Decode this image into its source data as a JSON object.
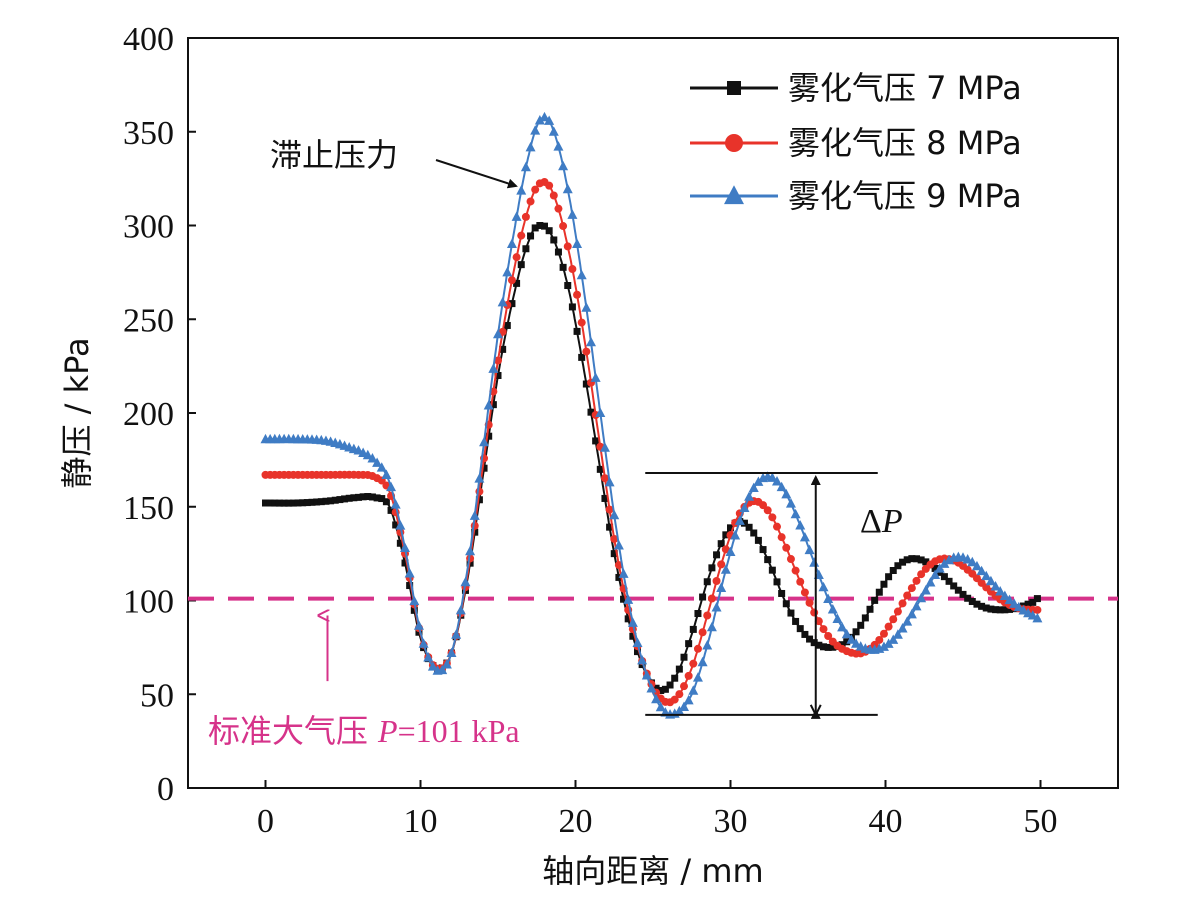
{
  "chart_data": {
    "type": "line",
    "xlabel": "轴向距离 / mm",
    "ylabel": "静压 / kPa",
    "xlim": [
      -5,
      55
    ],
    "ylim": [
      0,
      400
    ],
    "xticks": [
      0,
      10,
      20,
      30,
      40,
      50
    ],
    "yticks": [
      0,
      50,
      100,
      150,
      200,
      250,
      300,
      350,
      400
    ],
    "grid": false,
    "legend_position": "top-right",
    "series": [
      {
        "name": "雾化气压 7 MPa",
        "color": "#111111",
        "marker": "square",
        "points": [
          [
            0,
            152
          ],
          [
            2,
            152
          ],
          [
            4,
            153
          ],
          [
            6,
            155
          ],
          [
            7,
            155
          ],
          [
            8,
            150
          ],
          [
            9,
            120
          ],
          [
            10,
            80
          ],
          [
            11,
            64
          ],
          [
            12,
            72
          ],
          [
            13,
            110
          ],
          [
            14,
            165
          ],
          [
            15,
            220
          ],
          [
            16,
            262
          ],
          [
            17,
            292
          ],
          [
            17.7,
            300
          ],
          [
            18.5,
            294
          ],
          [
            19.5,
            268
          ],
          [
            20.5,
            225
          ],
          [
            21.5,
            175
          ],
          [
            22.5,
            125
          ],
          [
            23.5,
            87
          ],
          [
            24.5,
            62
          ],
          [
            25.5,
            52
          ],
          [
            26.5,
            60
          ],
          [
            27.5,
            82
          ],
          [
            28.5,
            110
          ],
          [
            29.5,
            132
          ],
          [
            30.5,
            142
          ],
          [
            31.5,
            136
          ],
          [
            32.5,
            120
          ],
          [
            33.5,
            100
          ],
          [
            34.5,
            85
          ],
          [
            35.5,
            77
          ],
          [
            36.5,
            75
          ],
          [
            37.5,
            78
          ],
          [
            38.5,
            88
          ],
          [
            39.5,
            103
          ],
          [
            40.5,
            116
          ],
          [
            41.5,
            122
          ],
          [
            42.5,
            121
          ],
          [
            43.5,
            115
          ],
          [
            44.5,
            107
          ],
          [
            45.5,
            100
          ],
          [
            46.5,
            96
          ],
          [
            47.5,
            95
          ],
          [
            48.5,
            96
          ],
          [
            49.5,
            99
          ],
          [
            50,
            102
          ]
        ]
      },
      {
        "name": "雾化气压 8 MPa",
        "color": "#e8332a",
        "marker": "circle",
        "points": [
          [
            0,
            167
          ],
          [
            2,
            167
          ],
          [
            4,
            167
          ],
          [
            6,
            167
          ],
          [
            7,
            166
          ],
          [
            8,
            158
          ],
          [
            9,
            125
          ],
          [
            10,
            82
          ],
          [
            11,
            64
          ],
          [
            12,
            72
          ],
          [
            13,
            112
          ],
          [
            14,
            170
          ],
          [
            15,
            228
          ],
          [
            16,
            275
          ],
          [
            17,
            310
          ],
          [
            17.8,
            323
          ],
          [
            18.6,
            316
          ],
          [
            19.6,
            285
          ],
          [
            20.6,
            238
          ],
          [
            21.6,
            182
          ],
          [
            22.6,
            128
          ],
          [
            23.6,
            88
          ],
          [
            24.6,
            61
          ],
          [
            25.6,
            47
          ],
          [
            26.5,
            48
          ],
          [
            27.5,
            64
          ],
          [
            28.5,
            92
          ],
          [
            29.5,
            122
          ],
          [
            30.5,
            145
          ],
          [
            31.5,
            153
          ],
          [
            32.5,
            147
          ],
          [
            33.5,
            130
          ],
          [
            34.5,
            110
          ],
          [
            35.5,
            92
          ],
          [
            36.5,
            79
          ],
          [
            37.5,
            73
          ],
          [
            38.5,
            72
          ],
          [
            39.5,
            78
          ],
          [
            40.5,
            90
          ],
          [
            41.5,
            104
          ],
          [
            42.5,
            116
          ],
          [
            43.5,
            122
          ],
          [
            44.5,
            121
          ],
          [
            45.5,
            115
          ],
          [
            46.5,
            107
          ],
          [
            47.5,
            100
          ],
          [
            48.5,
            96
          ],
          [
            49.5,
            95
          ],
          [
            50,
            95
          ]
        ]
      },
      {
        "name": "雾化气压 9 MPa",
        "color": "#3f7cc4",
        "marker": "triangle",
        "points": [
          [
            0,
            186
          ],
          [
            2,
            186
          ],
          [
            4,
            185
          ],
          [
            6,
            180
          ],
          [
            7,
            175
          ],
          [
            8,
            163
          ],
          [
            9,
            128
          ],
          [
            10,
            83
          ],
          [
            11,
            63
          ],
          [
            12,
            72
          ],
          [
            13,
            115
          ],
          [
            14,
            178
          ],
          [
            15,
            242
          ],
          [
            16,
            295
          ],
          [
            17,
            338
          ],
          [
            17.8,
            357
          ],
          [
            18.6,
            350
          ],
          [
            19.6,
            315
          ],
          [
            20.6,
            262
          ],
          [
            21.6,
            200
          ],
          [
            22.6,
            140
          ],
          [
            23.6,
            92
          ],
          [
            24.6,
            60
          ],
          [
            25.6,
            42
          ],
          [
            26.5,
            40
          ],
          [
            27.5,
            50
          ],
          [
            28.5,
            76
          ],
          [
            29.5,
            110
          ],
          [
            30.5,
            140
          ],
          [
            31.5,
            160
          ],
          [
            32.5,
            166
          ],
          [
            33.5,
            158
          ],
          [
            34.5,
            140
          ],
          [
            35.5,
            118
          ],
          [
            36.5,
            97
          ],
          [
            37.5,
            82
          ],
          [
            38.5,
            75
          ],
          [
            39.5,
            74
          ],
          [
            40.5,
            79
          ],
          [
            41.5,
            90
          ],
          [
            42.5,
            104
          ],
          [
            43.5,
            117
          ],
          [
            44.5,
            123
          ],
          [
            45.5,
            121
          ],
          [
            46.5,
            113
          ],
          [
            47.5,
            104
          ],
          [
            48.5,
            97
          ],
          [
            49.5,
            92
          ],
          [
            50,
            90
          ]
        ]
      }
    ],
    "reference_line": {
      "y": 101,
      "color": "#d6338a",
      "label": "标准大气压",
      "label_var": "P",
      "label_value": "=101 kPa"
    },
    "annotations": {
      "stagnation_label": "滞止压力",
      "delta_symbol": "Δ",
      "delta_var": "P"
    }
  }
}
